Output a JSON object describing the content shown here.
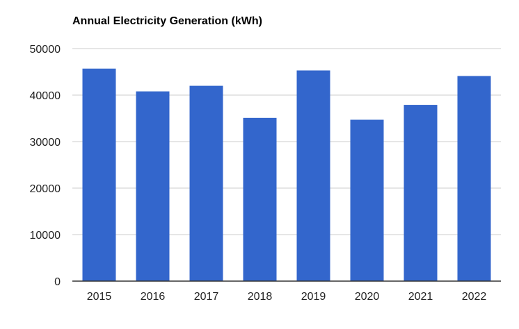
{
  "chart_data": {
    "type": "bar",
    "title": "Annual Electricity Generation (kWh)",
    "xlabel": "",
    "ylabel": "",
    "categories": [
      "2015",
      "2016",
      "2017",
      "2018",
      "2019",
      "2020",
      "2021",
      "2022"
    ],
    "values": [
      45700,
      40800,
      42000,
      35100,
      45300,
      34700,
      37900,
      44100
    ],
    "ylim": [
      0,
      50000
    ],
    "yticks": [
      0,
      10000,
      20000,
      30000,
      40000,
      50000
    ],
    "ytick_labels": [
      "0",
      "10000",
      "20000",
      "30000",
      "40000",
      "50000"
    ],
    "grid": true,
    "legend": "none",
    "bar_color": "#3366cc",
    "grid_color": "#cccccc",
    "axis_color": "#333333"
  }
}
